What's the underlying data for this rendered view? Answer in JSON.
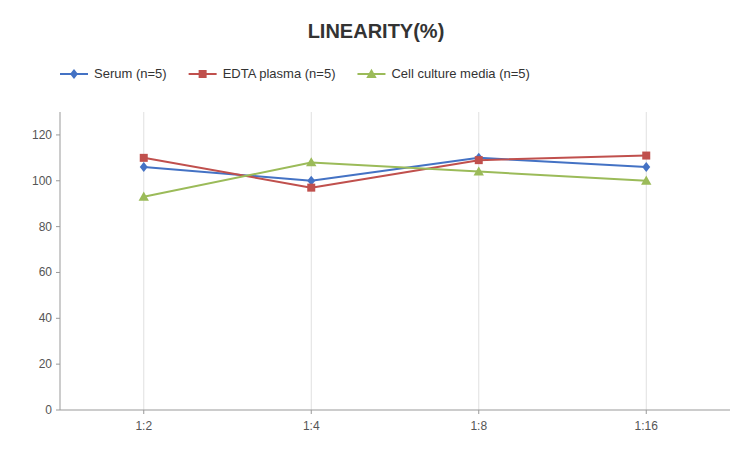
{
  "chart_data": {
    "type": "line",
    "title": "LINEARITY(%)",
    "categories": [
      "1:2",
      "1:4",
      "1:8",
      "1:16"
    ],
    "series": [
      {
        "name": "Serum (n=5)",
        "color": "#4472C4",
        "marker": "diamond",
        "values": [
          106,
          100,
          110,
          106
        ]
      },
      {
        "name": "EDTA plasma (n=5)",
        "color": "#C0504D",
        "marker": "square",
        "values": [
          110,
          97,
          109,
          111
        ]
      },
      {
        "name": "Cell culture media (n=5)",
        "color": "#9BBB59",
        "marker": "triangle",
        "values": [
          93,
          108,
          104,
          100
        ]
      }
    ],
    "ylim": [
      0,
      130
    ],
    "yticks": [
      0,
      20,
      40,
      60,
      80,
      100,
      120
    ],
    "grid": true,
    "legend": "top"
  }
}
